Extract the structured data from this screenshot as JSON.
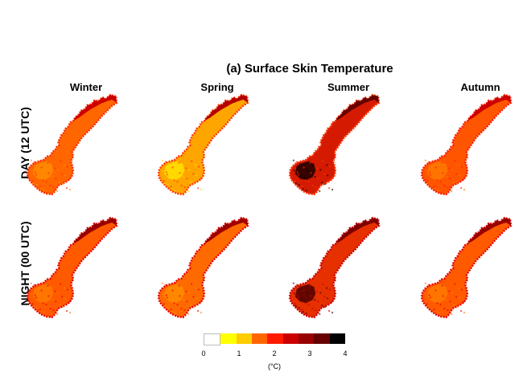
{
  "title": "(a) Surface Skin Temperature",
  "seasons": [
    "Winter",
    "Spring",
    "Summer",
    "Autumn"
  ],
  "rows": [
    "DAY (12 UTC)",
    "NIGHT (00 UTC)"
  ],
  "colorbar": {
    "colors": [
      "#ffffff",
      "#ffff00",
      "#ffcc00",
      "#ff6600",
      "#ff1a00",
      "#cc0000",
      "#990000",
      "#660000",
      "#000000"
    ],
    "ticks": [
      "0",
      "1",
      "2",
      "3",
      "4"
    ],
    "unit": "(°C)"
  },
  "panels": [
    {
      "row": 0,
      "season": "Winter",
      "fill": "#ff6600",
      "coast": "#ff2a00",
      "north": "#cc0000",
      "highlight": "#ff8c00"
    },
    {
      "row": 0,
      "season": "Spring",
      "fill": "#ffa500",
      "coast": "#ff3300",
      "north": "#b30000",
      "highlight": "#ffe000"
    },
    {
      "row": 0,
      "season": "Summer",
      "fill": "#d41a00",
      "coast": "#ff3300",
      "north": "#660000",
      "highlight": "#1a0000"
    },
    {
      "row": 0,
      "season": "Autumn",
      "fill": "#ff5500",
      "coast": "#ff1a00",
      "north": "#cc0000",
      "highlight": "#ff7a00"
    },
    {
      "row": 1,
      "season": "Winter",
      "fill": "#ff5a00",
      "coast": "#e60000",
      "north": "#990000",
      "highlight": "#ff7a00"
    },
    {
      "row": 1,
      "season": "Spring",
      "fill": "#ff6a00",
      "coast": "#e60000",
      "north": "#a00000",
      "highlight": "#ff8c00"
    },
    {
      "row": 1,
      "season": "Summer",
      "fill": "#e63000",
      "coast": "#cc0000",
      "north": "#800000",
      "highlight": "#4d0000"
    },
    {
      "row": 1,
      "season": "Autumn",
      "fill": "#ff5a00",
      "coast": "#e60000",
      "north": "#990000",
      "highlight": "#ff7a00"
    }
  ]
}
